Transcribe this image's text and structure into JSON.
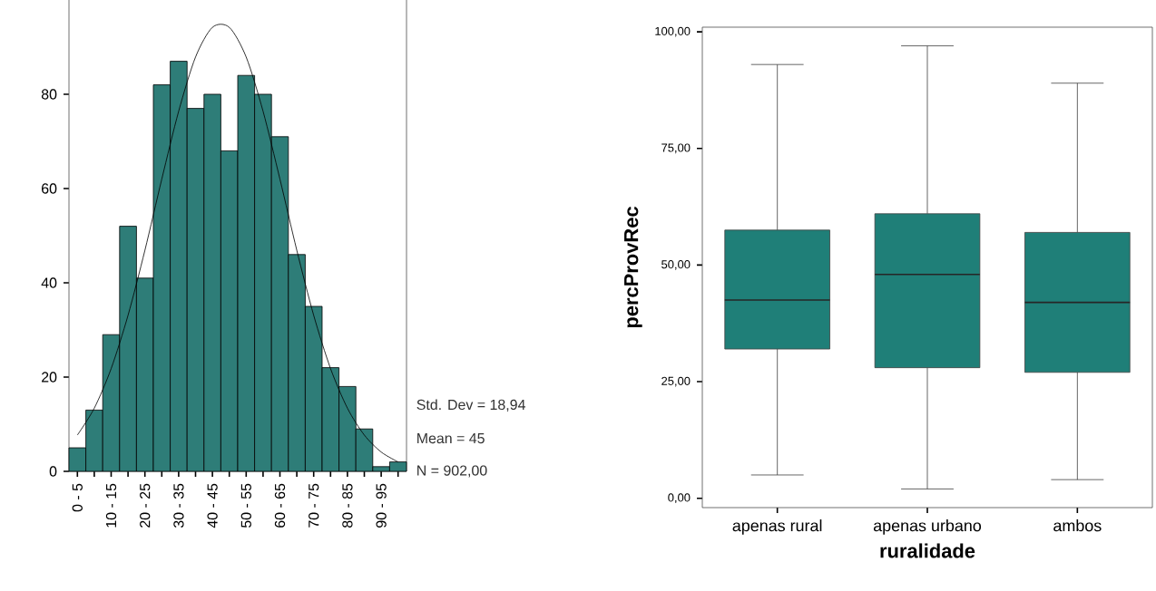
{
  "chart_data": [
    {
      "type": "bar",
      "categories": [
        "0 - 5",
        null,
        "10 - 15",
        null,
        "20 - 25",
        null,
        "30 - 35",
        null,
        "40 - 45",
        null,
        "50 - 55",
        null,
        "60 - 65",
        null,
        "70 - 75",
        null,
        "80 - 85",
        null,
        "90 - 95",
        null
      ],
      "series": [
        {
          "color": "#2e7d78",
          "values": [
            5,
            13,
            29,
            52,
            41,
            82,
            87,
            77,
            80,
            68,
            84,
            80,
            71,
            46,
            35,
            22,
            18,
            9,
            1,
            2
          ]
        },
        {
          "type": "line",
          "color": "#000000",
          "values": [
            7.7,
            13.4,
            21.8,
            33.1,
            46.9,
            62,
            76.4,
            87.9,
            94.2,
            94.2,
            87.9,
            76.4,
            62,
            46.9,
            33.1,
            21.8,
            13.4,
            7.7,
            4.1,
            2
          ]
        }
      ],
      "ylim": [
        0,
        100
      ],
      "yticks": [
        0,
        20,
        40,
        60,
        80
      ],
      "annotations": [
        "Std. Dev = 18,94",
        "Mean = 45",
        "N = 902,00"
      ]
    },
    {
      "type": "box",
      "categories": [
        "apenas rural",
        "apenas urbano",
        "ambos"
      ],
      "color": "#1f7f78",
      "boxes": [
        {
          "low": 5,
          "q1": 32,
          "median": 42.5,
          "q3": 57.5,
          "high": 93
        },
        {
          "low": 2,
          "q1": 28,
          "median": 48,
          "q3": 61,
          "high": 97
        },
        {
          "low": 4,
          "q1": 27,
          "median": 42,
          "q3": 57,
          "high": 89
        }
      ],
      "xlabel": "ruralidade",
      "ylabel": "percProvRec",
      "ylim": [
        -2,
        101
      ],
      "yticks": [
        {
          "value": 0,
          "label": "0,00"
        },
        {
          "value": 25,
          "label": "25,00"
        },
        {
          "value": 50,
          "label": "50,00"
        },
        {
          "value": 75,
          "label": "75,00"
        },
        {
          "value": 100,
          "label": "100,00"
        }
      ]
    }
  ]
}
